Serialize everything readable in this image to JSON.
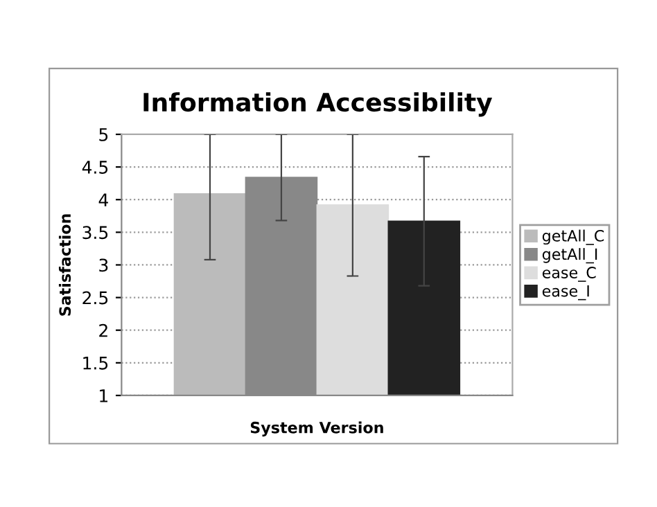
{
  "chart_data": {
    "type": "bar",
    "title": "Information Accessibility",
    "xlabel": "System Version",
    "ylabel": "Satisfaction",
    "categories": [
      null
    ],
    "series": [
      {
        "name": "getAll_C",
        "color": "#bbbbbb",
        "values": [
          4.09
        ],
        "errors": [
          [
            3.08,
            5.0
          ]
        ]
      },
      {
        "name": "getAll_I",
        "color": "#888888",
        "values": [
          4.34
        ],
        "errors": [
          0.66
        ]
      },
      {
        "name": "ease_C",
        "color": "#dddddd",
        "values": [
          3.92
        ],
        "errors": [
          [
            2.83,
            5.0
          ]
        ]
      },
      {
        "name": "ease_I",
        "color": "#222222",
        "values": [
          3.67
        ],
        "errors": [
          0.99
        ]
      }
    ],
    "ylim": [
      1,
      5
    ],
    "yticks": [
      1,
      1.5,
      2,
      2.5,
      3,
      3.5,
      4,
      4.5,
      5
    ],
    "grid": "y",
    "legend": "right"
  }
}
